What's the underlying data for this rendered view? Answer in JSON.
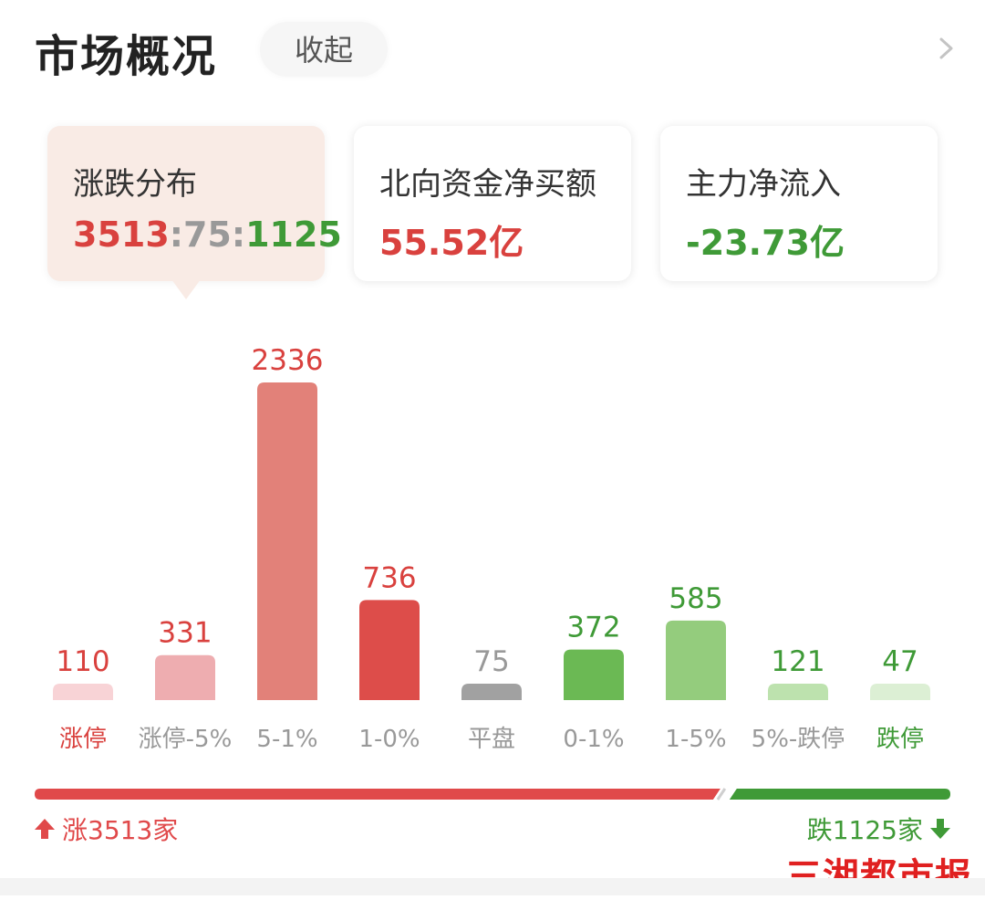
{
  "header": {
    "title": "市场概况",
    "collapse_label": "收起"
  },
  "cards": [
    {
      "label": "涨跌分布",
      "value_parts": [
        "3513",
        ":",
        "75",
        ":",
        "1125"
      ]
    },
    {
      "label": "北向资金净买额",
      "value": "55.52亿"
    },
    {
      "label": "主力净流入",
      "value": "-23.73亿"
    }
  ],
  "colors": {
    "up": "#e0494a",
    "flat": "#999999",
    "down": "#3f9a37"
  },
  "chart_data": {
    "type": "bar",
    "categories": [
      "涨停",
      "涨停-5%",
      "5-1%",
      "1-0%",
      "平盘",
      "0-1%",
      "1-5%",
      "5%-跌停",
      "跌停"
    ],
    "values": [
      110,
      331,
      2336,
      736,
      75,
      372,
      585,
      121,
      47
    ],
    "bar_colors": [
      "#f8d3d6",
      "#eeadb0",
      "#e28179",
      "#dd4d4a",
      "#a1a1a1",
      "#6bb954",
      "#94cc7d",
      "#bde2ae",
      "#dcefd4"
    ],
    "value_label_colors": [
      "#d9413e",
      "#d9413e",
      "#d9413e",
      "#d9413e",
      "#999999",
      "#3f9a37",
      "#3f9a37",
      "#3f9a37",
      "#3f9a37"
    ],
    "category_label_colors": [
      "#d9413e",
      "#999999",
      "#999999",
      "#999999",
      "#999999",
      "#999999",
      "#999999",
      "#999999",
      "#3f9a37"
    ],
    "ylim": [
      0,
      2336
    ]
  },
  "summary": {
    "up_label": "涨3513家",
    "down_label": "跌1125家",
    "up_count": 3513,
    "down_count": 1125
  },
  "watermark": "三湘都市报"
}
